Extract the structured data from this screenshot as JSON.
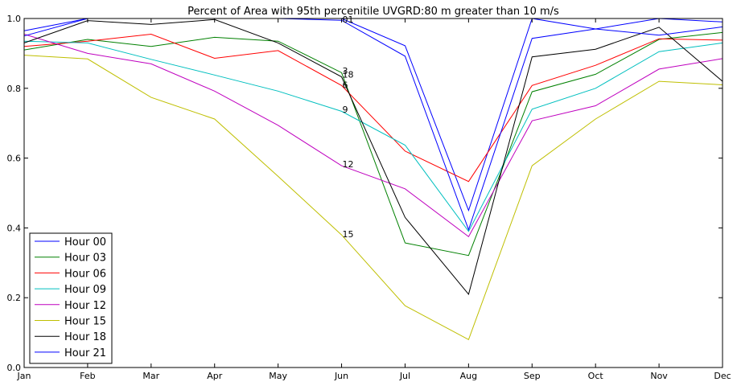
{
  "chart_data": {
    "type": "line",
    "title": "Percent of Area with 95th percenitile UVGRD:80 m greater than 10 m/s",
    "xlabel": "",
    "ylabel": "",
    "categories": [
      "Jan",
      "Feb",
      "Mar",
      "Apr",
      "May",
      "Jun",
      "Jul",
      "Aug",
      "Sep",
      "Oct",
      "Nov",
      "Dec"
    ],
    "ylim": [
      0.0,
      1.0
    ],
    "yticks": [
      "0.0",
      "0.2",
      "0.4",
      "0.6",
      "0.8",
      "1.0"
    ],
    "grid": false,
    "legend_position": "lower-left",
    "series": [
      {
        "name": "Hour 00",
        "color": "#0000ff",
        "values": [
          0.965,
          1.0,
          1.0,
          1.0,
          1.0,
          1.0,
          0.922,
          0.45,
          1.0,
          0.97,
          1.0,
          0.99
        ]
      },
      {
        "name": "Hour 03",
        "color": "#008000",
        "values": [
          0.91,
          0.94,
          0.92,
          0.946,
          0.935,
          0.845,
          0.357,
          0.321,
          0.79,
          0.84,
          0.94,
          0.96
        ]
      },
      {
        "name": "Hour 06",
        "color": "#ff0000",
        "values": [
          0.92,
          0.935,
          0.955,
          0.886,
          0.908,
          0.808,
          0.62,
          0.533,
          0.808,
          0.866,
          0.942,
          0.938
        ]
      },
      {
        "name": "Hour 09",
        "color": "#00bfbf",
        "values": [
          0.935,
          0.93,
          0.883,
          0.838,
          0.792,
          0.734,
          0.637,
          0.39,
          0.74,
          0.8,
          0.905,
          0.93
        ]
      },
      {
        "name": "Hour 12",
        "color": "#bf00bf",
        "values": [
          0.955,
          0.9,
          0.87,
          0.792,
          0.694,
          0.578,
          0.512,
          0.375,
          0.707,
          0.75,
          0.855,
          0.885
        ]
      },
      {
        "name": "Hour 15",
        "color": "#bfbf00",
        "values": [
          0.895,
          0.884,
          0.774,
          0.712,
          0.548,
          0.38,
          0.177,
          0.08,
          0.578,
          0.712,
          0.82,
          0.81
        ]
      },
      {
        "name": "Hour 18",
        "color": "#000000",
        "values": [
          0.93,
          0.994,
          0.983,
          0.997,
          0.93,
          0.833,
          0.43,
          0.21,
          0.89,
          0.912,
          0.975,
          0.82
        ]
      },
      {
        "name": "Hour 21",
        "color": "#0000ff",
        "values": [
          0.95,
          1.0,
          1.0,
          1.0,
          1.0,
          0.995,
          0.892,
          0.395,
          0.943,
          0.97,
          0.952,
          0.976
        ]
      }
    ],
    "annotations": [
      {
        "text": "01",
        "x": "Jun",
        "y": 0.998
      },
      {
        "text": "3",
        "x": "Jun",
        "y": 0.85
      },
      {
        "text": "18",
        "x": "Jun",
        "y": 0.84
      },
      {
        "text": "6",
        "x": "Jun",
        "y": 0.81
      },
      {
        "text": "9",
        "x": "Jun",
        "y": 0.74
      },
      {
        "text": "12",
        "x": "Jun",
        "y": 0.583
      },
      {
        "text": "15",
        "x": "Jun",
        "y": 0.383
      }
    ]
  }
}
